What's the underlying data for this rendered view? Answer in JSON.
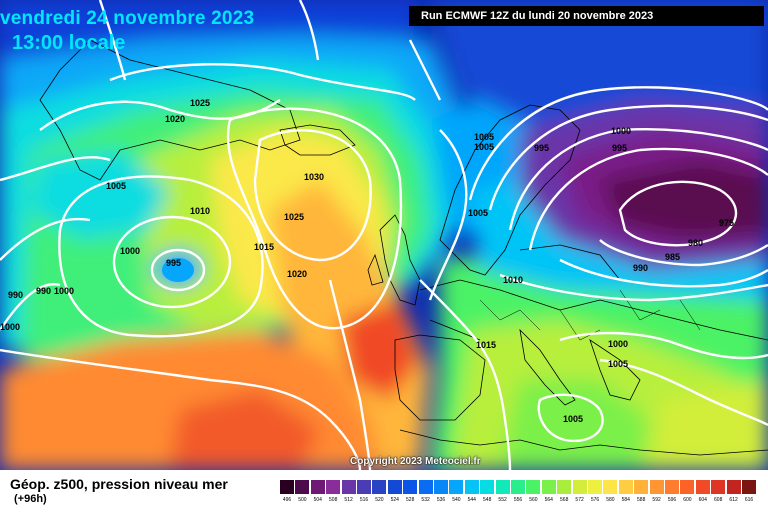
{
  "header": {
    "date": "vendredi 24 novembre 2023",
    "time": "13:00 locale",
    "run": "Run ECMWF 12Z du lundi 20 novembre 2023"
  },
  "copyright": "Copyright 2023 Meteociel.fr",
  "footer": {
    "title": "Géop. z500, pression niveau mer",
    "subtitle": "(+96h)"
  },
  "legend": {
    "values": [
      "496",
      "500",
      "504",
      "508",
      "512",
      "516",
      "520",
      "524",
      "528",
      "532",
      "536",
      "540",
      "544",
      "548",
      "552",
      "556",
      "560",
      "564",
      "568",
      "572",
      "576",
      "580",
      "584",
      "588",
      "592",
      "596",
      "600",
      "604",
      "608",
      "612",
      "616"
    ],
    "colors": [
      "#2a0020",
      "#4d0a4d",
      "#6e1a75",
      "#8a2c9a",
      "#6a35a8",
      "#4a3cb5",
      "#2a43c4",
      "#1449d6",
      "#0a55e8",
      "#0a6cf2",
      "#0788f8",
      "#05a6fb",
      "#04c4f6",
      "#06dde2",
      "#10e9b8",
      "#28ef8c",
      "#4bf265",
      "#7af04a",
      "#a9ee3c",
      "#d2ee3a",
      "#eef03f",
      "#fde548",
      "#ffcd42",
      "#ffb13a",
      "#ff9633",
      "#ff7c2e",
      "#fc6329",
      "#f04a26",
      "#df3524",
      "#c22420",
      "#7a1512"
    ]
  },
  "isobar_labels": [
    "1025",
    "1020",
    "1005",
    "1010",
    "1000",
    "995",
    "990",
    "990",
    "1000",
    "1000",
    "1030",
    "1025",
    "1015",
    "1020",
    "1005",
    "1005",
    "995",
    "1000",
    "995",
    "1005",
    "975",
    "980",
    "985",
    "990",
    "1010",
    "1015",
    "1000",
    "1005",
    "1005"
  ],
  "map_colors": {
    "ocean_dark": "#0a2aa8",
    "land_low": "#e03030",
    "isobar": "#ffffff",
    "coastline": "#000000"
  }
}
